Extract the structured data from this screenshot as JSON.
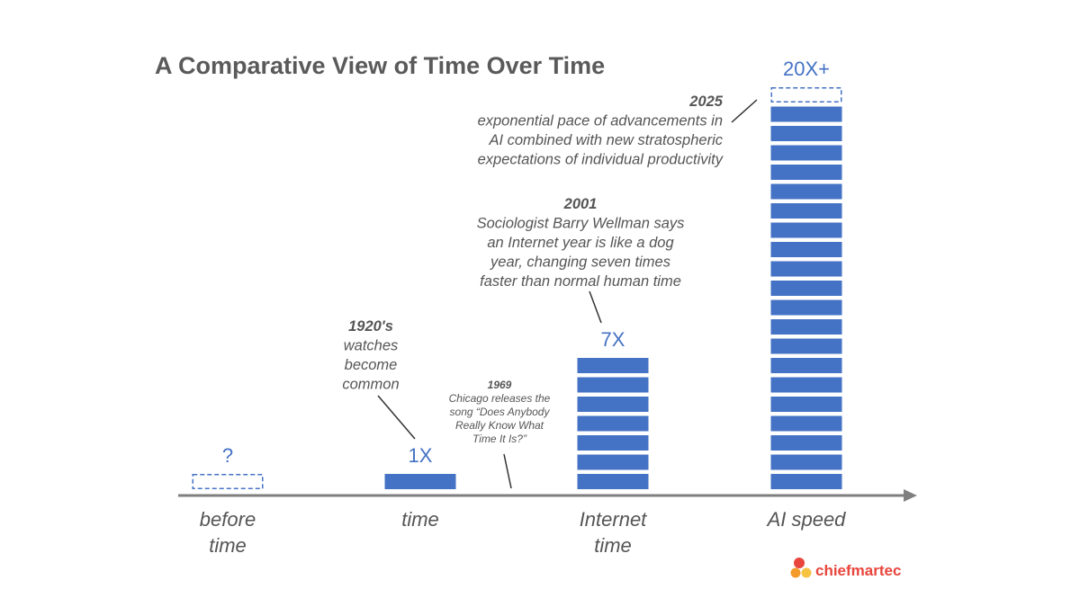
{
  "colors": {
    "bar": "#4472c4",
    "axis": "#7f7f7f",
    "text": "#555555",
    "brand": "#e8453c"
  },
  "chart_data": {
    "type": "bar",
    "title": "A Comparative View of Time Over Time",
    "categories": [
      {
        "lines": [
          "before",
          "time"
        ]
      },
      {
        "lines": [
          "time"
        ]
      },
      {
        "lines": [
          "Internet",
          "time"
        ]
      },
      {
        "lines": [
          "AI speed"
        ]
      }
    ],
    "series": [
      {
        "values": [
          null,
          1,
          7,
          20
        ]
      }
    ],
    "value_labels": [
      "?",
      "1X",
      "7X",
      "20X+"
    ],
    "extra_unknown": [
      true,
      false,
      false,
      true
    ],
    "annotations": [
      {
        "year": "1920's",
        "lines": [
          "watches",
          "become",
          "common"
        ],
        "category": 1
      },
      {
        "year": "1969",
        "lines": [
          "Chicago releases the",
          "song “Does Anybody",
          "Really Know What",
          "Time It Is?”"
        ],
        "category": 1
      },
      {
        "year": "2001",
        "lines": [
          "Sociologist Barry Wellman says",
          "an Internet year is like a dog",
          "year, changing seven times",
          "faster than normal human time"
        ],
        "category": 2
      },
      {
        "year": "2025",
        "lines": [
          "exponential pace of advancements in",
          "AI combined with new stratospheric",
          "expectations of individual productivity"
        ],
        "category": 3
      }
    ],
    "grid": false,
    "legend": "none"
  },
  "brand": {
    "name": "chiefmartec"
  }
}
